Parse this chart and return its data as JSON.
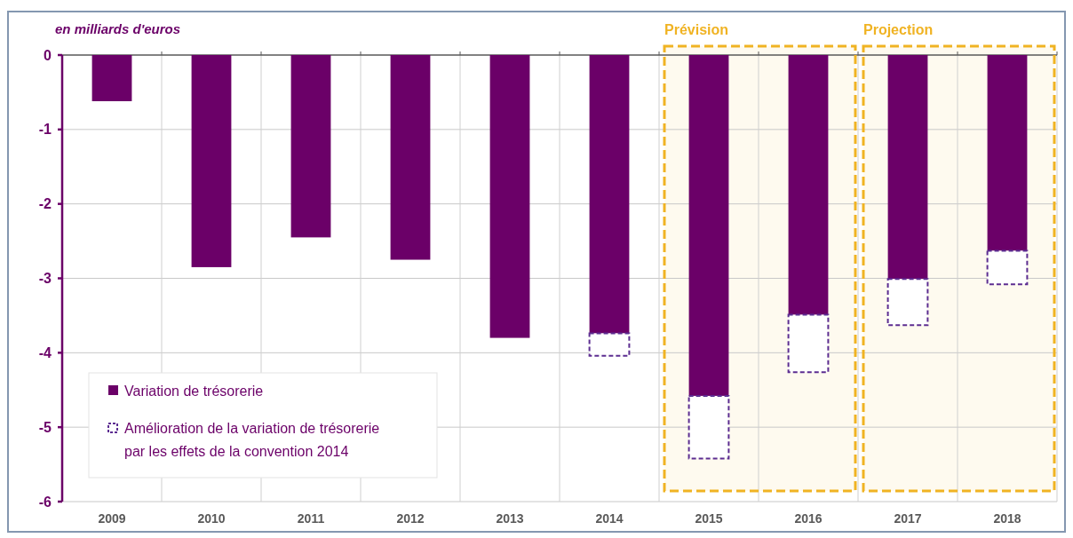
{
  "chart_data": {
    "type": "bar",
    "ylabel": "en milliards d'euros",
    "categories": [
      "2009",
      "2010",
      "2011",
      "2012",
      "2013",
      "2014",
      "2015",
      "2016",
      "2017",
      "2018"
    ],
    "stacked": true,
    "series": [
      {
        "name": "Variation de trésorerie",
        "color": "#6b0068",
        "values": [
          -0.62,
          -2.85,
          -2.45,
          -2.75,
          -3.8,
          -3.74,
          -4.58,
          -3.49,
          -3.01,
          -2.63
        ]
      },
      {
        "name": "Amélioration de la variation de trésorerie par les effets de la convention 2014",
        "color": "#5c2d91",
        "line_style": "dashed",
        "values": [
          null,
          null,
          null,
          null,
          null,
          -0.3,
          -0.84,
          -0.77,
          -0.62,
          -0.45
        ]
      }
    ],
    "ylim": [
      -6,
      0
    ],
    "yticks": [
      -6,
      -5,
      -4,
      -3,
      -2,
      -1,
      0
    ],
    "grid": true,
    "legend": "bottom left",
    "bands": [
      {
        "axis": "x",
        "from": "2015",
        "to": "2016",
        "label": "Prévision",
        "color": "#f0b323"
      },
      {
        "axis": "x",
        "from": "2017",
        "to": "2018",
        "label": "Projection",
        "color": "#f0b323"
      }
    ]
  }
}
